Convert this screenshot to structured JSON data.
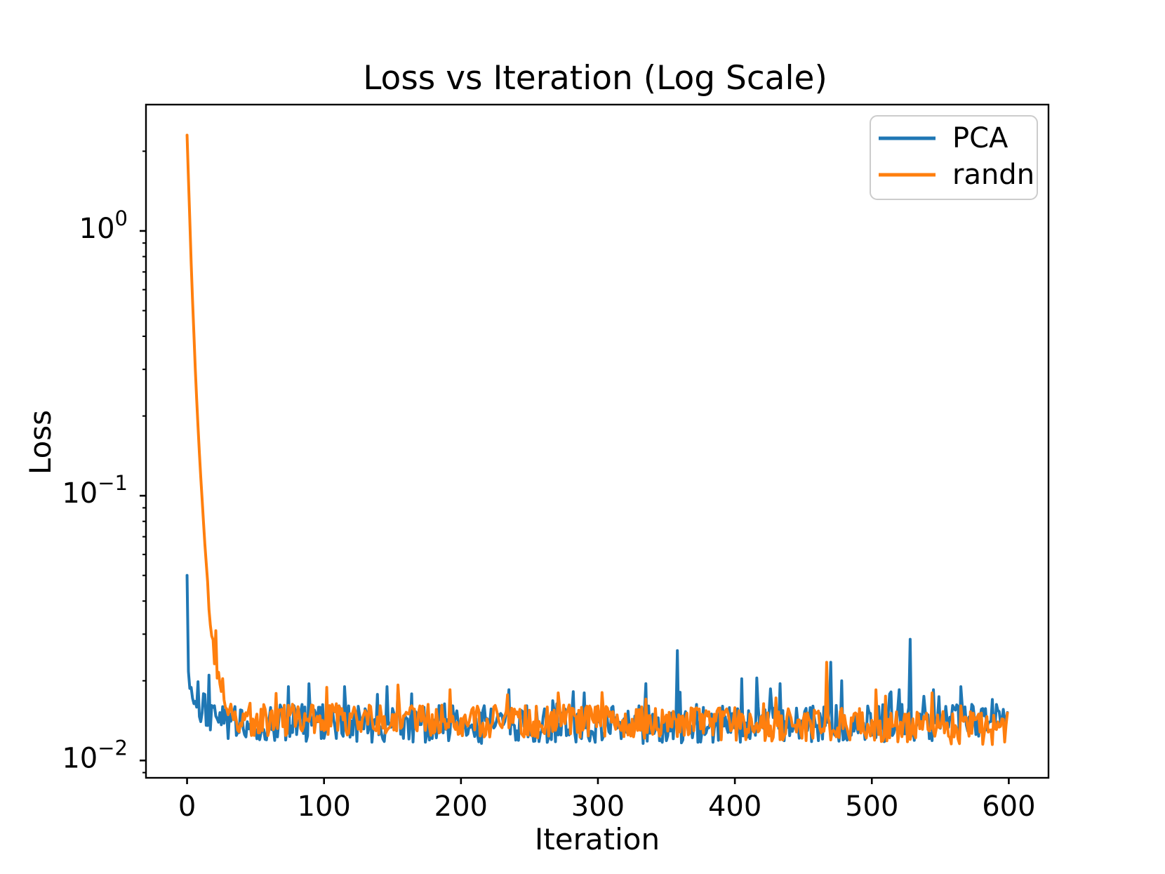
{
  "figure": {
    "background": "#ffffff",
    "text_color": "#000000",
    "spine_color": "#000000"
  },
  "chart_data": {
    "type": "line",
    "title": "Loss vs Iteration (Log Scale)",
    "xlabel": "Iteration",
    "ylabel": "Loss",
    "x_scale": "linear",
    "y_scale": "log",
    "grid": false,
    "xlim": [
      -30,
      629
    ],
    "ylim": [
      0.0086,
      3.0
    ],
    "x_ticks": [
      0,
      100,
      200,
      300,
      400,
      500,
      600
    ],
    "y_ticks": [
      {
        "value": 1,
        "base": "10",
        "exp": "0"
      },
      {
        "value": 0.1,
        "base": "10",
        "exp": "−1"
      },
      {
        "value": 0.01,
        "base": "10",
        "exp": "−2"
      }
    ],
    "legend": {
      "position": "upper right",
      "border_color": "#cccccc",
      "entries": [
        {
          "label": "PCA",
          "color": "#1f77b4"
        },
        {
          "label": "randn",
          "color": "#ff7f0e"
        }
      ]
    },
    "series": [
      {
        "name": "PCA",
        "color": "#1f77b4",
        "x_range": [
          0,
          599
        ],
        "keypoints": [
          [
            0,
            0.05
          ],
          [
            1,
            0.021
          ],
          [
            3,
            0.0175
          ],
          [
            6,
            0.018
          ],
          [
            10,
            0.016
          ],
          [
            15,
            0.0148
          ],
          [
            22,
            0.014
          ],
          [
            120,
            0.0138
          ],
          [
            300,
            0.0136
          ],
          [
            599,
            0.014
          ]
        ],
        "noise_decades": 0.072,
        "spike_prob": 0.055,
        "spike_decades": 0.14,
        "seed": 20,
        "spikes": [
          [
            0,
            0.05
          ],
          [
            16,
            0.021
          ],
          [
            74,
            0.019
          ],
          [
            115,
            0.019
          ],
          [
            146,
            0.019
          ],
          [
            154,
            0.0185
          ],
          [
            235,
            0.0185
          ],
          [
            290,
            0.018
          ],
          [
            335,
            0.0195
          ],
          [
            358,
            0.026
          ],
          [
            416,
            0.0205
          ],
          [
            433,
            0.0195
          ],
          [
            470,
            0.0235
          ],
          [
            478,
            0.02
          ],
          [
            520,
            0.0185
          ],
          [
            528,
            0.0287
          ],
          [
            545,
            0.0185
          ],
          [
            565,
            0.019
          ],
          [
            588,
            0.017
          ]
        ]
      },
      {
        "name": "randn",
        "color": "#ff7f0e",
        "x_range": [
          0,
          599
        ],
        "keypoints": [
          [
            0,
            2.3
          ],
          [
            3,
            0.75
          ],
          [
            6,
            0.3
          ],
          [
            9,
            0.145
          ],
          [
            12,
            0.08
          ],
          [
            15,
            0.046
          ],
          [
            18,
            0.03
          ],
          [
            21,
            0.024
          ],
          [
            24,
            0.0205
          ],
          [
            27,
            0.0175
          ],
          [
            31,
            0.015
          ],
          [
            45,
            0.0143
          ],
          [
            300,
            0.014
          ],
          [
            599,
            0.0132
          ]
        ],
        "noise_decades": 0.062,
        "spike_prob": 0.045,
        "spike_decades": 0.11,
        "seed": 77,
        "spikes": [
          [
            0,
            2.3
          ],
          [
            192,
            0.0185
          ],
          [
            271,
            0.018
          ],
          [
            467,
            0.0235
          ],
          [
            510,
            0.0175
          ],
          [
            544,
            0.018
          ]
        ]
      }
    ]
  }
}
